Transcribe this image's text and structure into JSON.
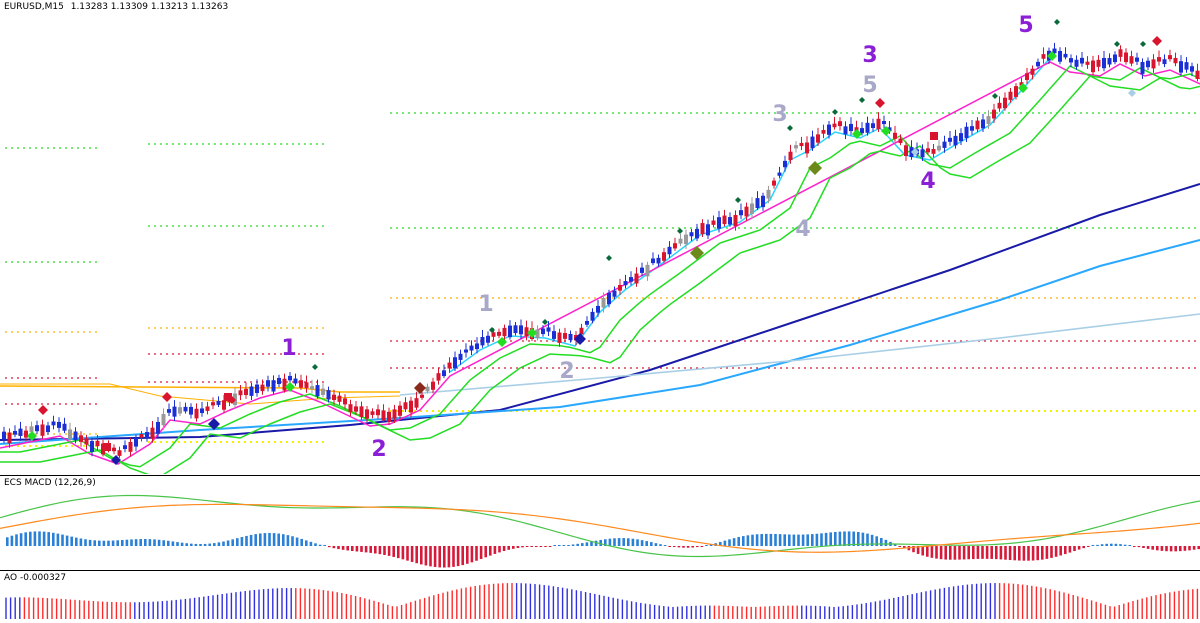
{
  "main": {
    "symbol": "EURUSD,M15",
    "quote": "1.13283 1.13309 1.13213 1.13263"
  },
  "macd": {
    "label": "ECS MACD (12,26,9)"
  },
  "ao": {
    "label": "AO -0.000327"
  },
  "colors": {
    "bull_candle": "#1a2fd6",
    "bear_candle": "#d8142f",
    "neutral_candle": "#9a9a9a",
    "ema_fast": "#22dd22",
    "ema_slow": "#22dd22",
    "ema_cyan": "#2bd3ff",
    "ema_magenta": "#ff22cc",
    "ma_navy": "#1a1aa8",
    "ma_sky": "#2aa8ff",
    "ma_light": "#a9cfe6",
    "pivot_orange": "#ffb000",
    "pivot_yellow": "#f5f000",
    "wave_purple": "#8a1fd6",
    "wave_gray": "#a8a8c8",
    "macd_green": "#49c449",
    "macd_orange": "#ff8a1f",
    "hist_blue": "#2a7fd6",
    "hist_red": "#d81a3a",
    "ao_blue": "#3030e0",
    "ao_red": "#ff2a2a"
  },
  "chart_data": [
    {
      "type": "line",
      "title": "EURUSD,M15",
      "current_bar": {
        "open": 1.13283,
        "high": 1.13309,
        "low": 1.13213,
        "close": 1.13263
      },
      "wave_labels_primary": [
        "1",
        "2",
        "3",
        "4",
        "5"
      ],
      "wave_labels_secondary": [
        "1",
        "2",
        "3",
        "4",
        "5"
      ]
    },
    {
      "type": "line",
      "title": "ECS MACD (12,26,9)",
      "series": [
        "MACD",
        "Signal",
        "Histogram"
      ]
    },
    {
      "type": "bar",
      "title": "AO",
      "last_value": -0.000327
    }
  ]
}
